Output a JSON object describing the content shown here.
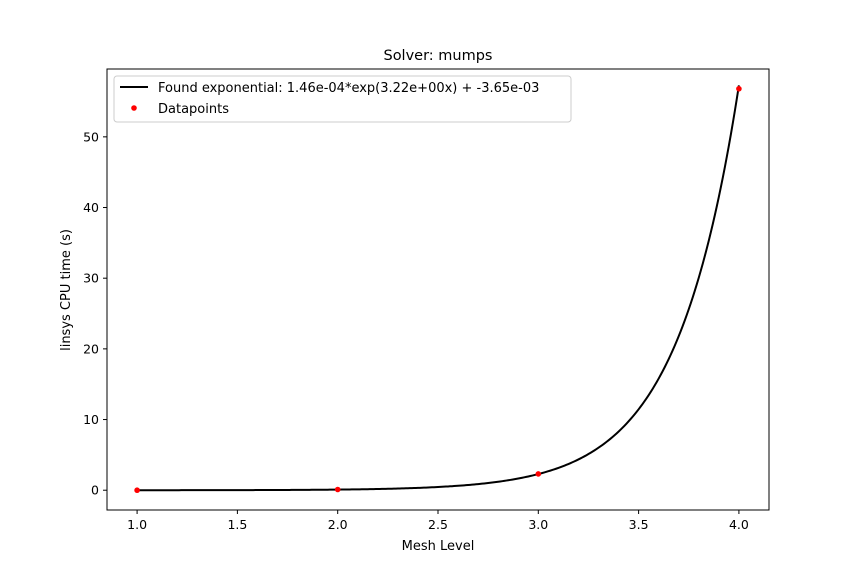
{
  "chart_data": {
    "type": "line",
    "title": "Solver:  mumps",
    "xlabel": "Mesh Level",
    "ylabel": "linsys CPU time (s)",
    "xlim": [
      0.85,
      4.15
    ],
    "ylim": [
      -2.8,
      59.6
    ],
    "xticks": [
      1.0,
      1.5,
      2.0,
      2.5,
      3.0,
      3.5,
      4.0
    ],
    "xtick_labels": [
      "1.0",
      "1.5",
      "2.0",
      "2.5",
      "3.0",
      "3.5",
      "4.0"
    ],
    "yticks": [
      0,
      10,
      20,
      30,
      40,
      50
    ],
    "ytick_labels": [
      "0",
      "10",
      "20",
      "30",
      "40",
      "50"
    ],
    "grid": false,
    "legend_position": "top-left",
    "fit": {
      "name": "Found exponential: 1.46e-04*exp(3.22e+00x) + -3.65e-03",
      "a": 0.000146,
      "b": 3.22,
      "c": -0.00365,
      "x_range": [
        1.0,
        4.0
      ],
      "color": "#000000"
    },
    "series": [
      {
        "name": "Datapoints",
        "x": [
          1.0,
          2.0,
          3.0,
          4.0
        ],
        "y": [
          0.0,
          0.1,
          2.3,
          56.8
        ],
        "color": "#ff0000"
      }
    ]
  }
}
